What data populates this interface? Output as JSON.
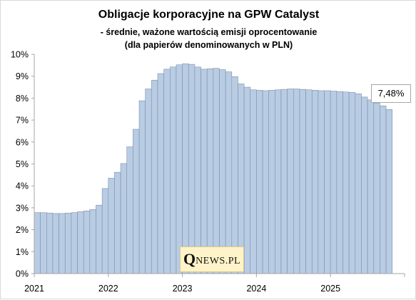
{
  "chart_data": {
    "type": "bar",
    "title": "Obligacje korporacyjne na GPW Catalyst",
    "subtitle_1": "- średnie, ważone wartością emisji oprocentowanie",
    "subtitle_2": "(dla papierów denominowanych w PLN)",
    "ylim": [
      0,
      10
    ],
    "y_ticks": [
      "0%",
      "1%",
      "2%",
      "3%",
      "4%",
      "5%",
      "6%",
      "7%",
      "8%",
      "9%",
      "10%"
    ],
    "x_ticks": [
      "2021",
      "2022",
      "2023",
      "2024",
      "2025"
    ],
    "x_tick_index": [
      0,
      12,
      24,
      36,
      48
    ],
    "values": [
      2.78,
      2.78,
      2.76,
      2.74,
      2.74,
      2.76,
      2.78,
      2.82,
      2.86,
      2.92,
      3.12,
      3.88,
      4.35,
      4.62,
      5.02,
      5.78,
      6.58,
      7.88,
      8.42,
      8.82,
      9.12,
      9.32,
      9.42,
      9.52,
      9.57,
      9.54,
      9.42,
      9.32,
      9.34,
      9.36,
      9.3,
      9.2,
      8.98,
      8.65,
      8.5,
      8.38,
      8.36,
      8.34,
      8.36,
      8.38,
      8.4,
      8.42,
      8.42,
      8.4,
      8.38,
      8.36,
      8.34,
      8.34,
      8.32,
      8.3,
      8.28,
      8.26,
      8.2,
      8.05,
      7.92,
      7.78,
      7.65,
      7.48
    ],
    "bar_color": "#b8cce4",
    "bar_edge": "#7f8fa6",
    "callout": "7,48%",
    "grid": false
  },
  "logo": {
    "q": "Q",
    "rest": "NEWS.PL"
  }
}
